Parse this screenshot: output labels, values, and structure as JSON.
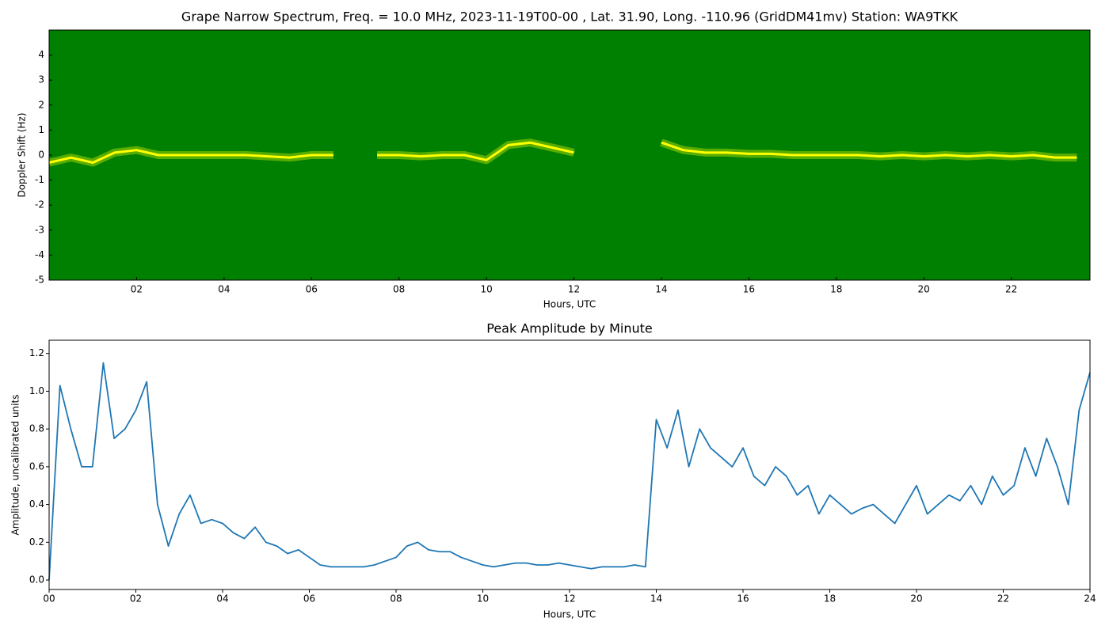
{
  "chart_data": [
    {
      "type": "spectrogram",
      "title": "Grape Narrow Spectrum, Freq. = 10.0 MHz, 2023-11-19T00-00 , Lat.  31.90, Long. -110.96 (GridDM41mv) Station: WA9TKK",
      "x_label": "Hours, UTC",
      "y_label": "Doppler Shift (Hz)",
      "background": "#008000",
      "x": [
        0,
        0.5,
        1,
        1.5,
        2,
        2.5,
        3,
        3.5,
        4,
        4.5,
        5,
        5.5,
        6,
        6.5,
        7,
        7.5,
        8,
        8.5,
        9,
        9.5,
        10,
        10.5,
        11,
        11.5,
        12,
        12.5,
        13,
        13.5,
        14,
        14.5,
        15,
        15.5,
        16,
        16.5,
        17,
        17.5,
        18,
        18.5,
        19,
        19.5,
        20,
        20.5,
        21,
        21.5,
        22,
        22.5,
        23,
        23.5
      ],
      "series": [
        {
          "name": "Doppler trace",
          "color": "#ffff00",
          "values": [
            -0.3,
            -0.1,
            -0.3,
            0.1,
            0.2,
            0.0,
            0.0,
            0.0,
            0.0,
            0.0,
            -0.05,
            -0.1,
            0.0,
            0.0,
            null,
            0.0,
            0.0,
            -0.05,
            0.0,
            0.0,
            -0.2,
            0.4,
            0.5,
            0.3,
            0.1,
            null,
            null,
            null,
            0.5,
            0.2,
            0.1,
            0.1,
            0.05,
            0.05,
            0.0,
            0.0,
            0.0,
            0.0,
            -0.05,
            0.0,
            -0.05,
            0.0,
            -0.05,
            0.0,
            -0.05,
            0.0,
            -0.1,
            -0.1
          ]
        }
      ],
      "xlim": [
        0,
        23.8
      ],
      "ylim": [
        -5,
        5
      ],
      "xticks": [
        {
          "value": 2,
          "label": "02"
        },
        {
          "value": 4,
          "label": "04"
        },
        {
          "value": 6,
          "label": "06"
        },
        {
          "value": 8,
          "label": "08"
        },
        10,
        12,
        14,
        16,
        18,
        20,
        22
      ],
      "yticks": [
        -5,
        -4,
        -3,
        -2,
        -1,
        0,
        1,
        2,
        3,
        4
      ]
    },
    {
      "type": "line",
      "title": "Peak Amplitude by Minute",
      "x_label": "Hours, UTC",
      "y_label": "Amplitude, uncalibrated units",
      "x": [
        0,
        0.25,
        0.5,
        0.75,
        1,
        1.25,
        1.5,
        1.75,
        2,
        2.25,
        2.5,
        2.75,
        3,
        3.25,
        3.5,
        3.75,
        4,
        4.25,
        4.5,
        4.75,
        5,
        5.25,
        5.5,
        5.75,
        6,
        6.25,
        6.5,
        6.75,
        7,
        7.25,
        7.5,
        7.75,
        8,
        8.25,
        8.5,
        8.75,
        9,
        9.25,
        9.5,
        9.75,
        10,
        10.25,
        10.5,
        10.75,
        11,
        11.25,
        11.5,
        11.75,
        12,
        12.25,
        12.5,
        12.75,
        13,
        13.25,
        13.5,
        13.75,
        14,
        14.25,
        14.5,
        14.75,
        15,
        15.25,
        15.5,
        15.75,
        16,
        16.25,
        16.5,
        16.75,
        17,
        17.25,
        17.5,
        17.75,
        18,
        18.25,
        18.5,
        18.75,
        19,
        19.25,
        19.5,
        19.75,
        20,
        20.25,
        20.5,
        20.75,
        21,
        21.25,
        21.5,
        21.75,
        22,
        22.25,
        22.5,
        22.75,
        23,
        23.25,
        23.5,
        23.75,
        24
      ],
      "series": [
        {
          "name": "Peak amplitude",
          "color": "#1f77b4",
          "values": [
            0.0,
            1.03,
            0.8,
            0.6,
            0.6,
            1.15,
            0.75,
            0.8,
            0.9,
            1.05,
            0.4,
            0.18,
            0.35,
            0.45,
            0.3,
            0.32,
            0.3,
            0.25,
            0.22,
            0.28,
            0.2,
            0.18,
            0.14,
            0.16,
            0.12,
            0.08,
            0.07,
            0.07,
            0.07,
            0.07,
            0.08,
            0.1,
            0.12,
            0.18,
            0.2,
            0.16,
            0.15,
            0.15,
            0.12,
            0.1,
            0.08,
            0.07,
            0.08,
            0.09,
            0.09,
            0.08,
            0.08,
            0.09,
            0.08,
            0.07,
            0.06,
            0.07,
            0.07,
            0.07,
            0.08,
            0.07,
            0.85,
            0.7,
            0.9,
            0.6,
            0.8,
            0.7,
            0.65,
            0.6,
            0.7,
            0.55,
            0.5,
            0.6,
            0.55,
            0.45,
            0.5,
            0.35,
            0.45,
            0.4,
            0.35,
            0.38,
            0.4,
            0.35,
            0.3,
            0.4,
            0.5,
            0.35,
            0.4,
            0.45,
            0.42,
            0.5,
            0.4,
            0.55,
            0.45,
            0.5,
            0.7,
            0.55,
            0.75,
            0.6,
            0.4,
            0.9,
            1.1
          ]
        }
      ],
      "xlim": [
        0,
        24
      ],
      "ylim": [
        -0.05,
        1.27
      ],
      "xticks": [
        {
          "value": 0,
          "label": "00"
        },
        {
          "value": 2,
          "label": "02"
        },
        {
          "value": 4,
          "label": "04"
        },
        {
          "value": 6,
          "label": "06"
        },
        {
          "value": 8,
          "label": "08"
        },
        10,
        12,
        14,
        16,
        18,
        20,
        22,
        24
      ],
      "yticks": [
        {
          "value": 0,
          "label": "0.0"
        },
        0.2,
        0.4,
        0.6,
        0.8,
        {
          "value": 1,
          "label": "1.0"
        },
        1.2
      ]
    }
  ]
}
